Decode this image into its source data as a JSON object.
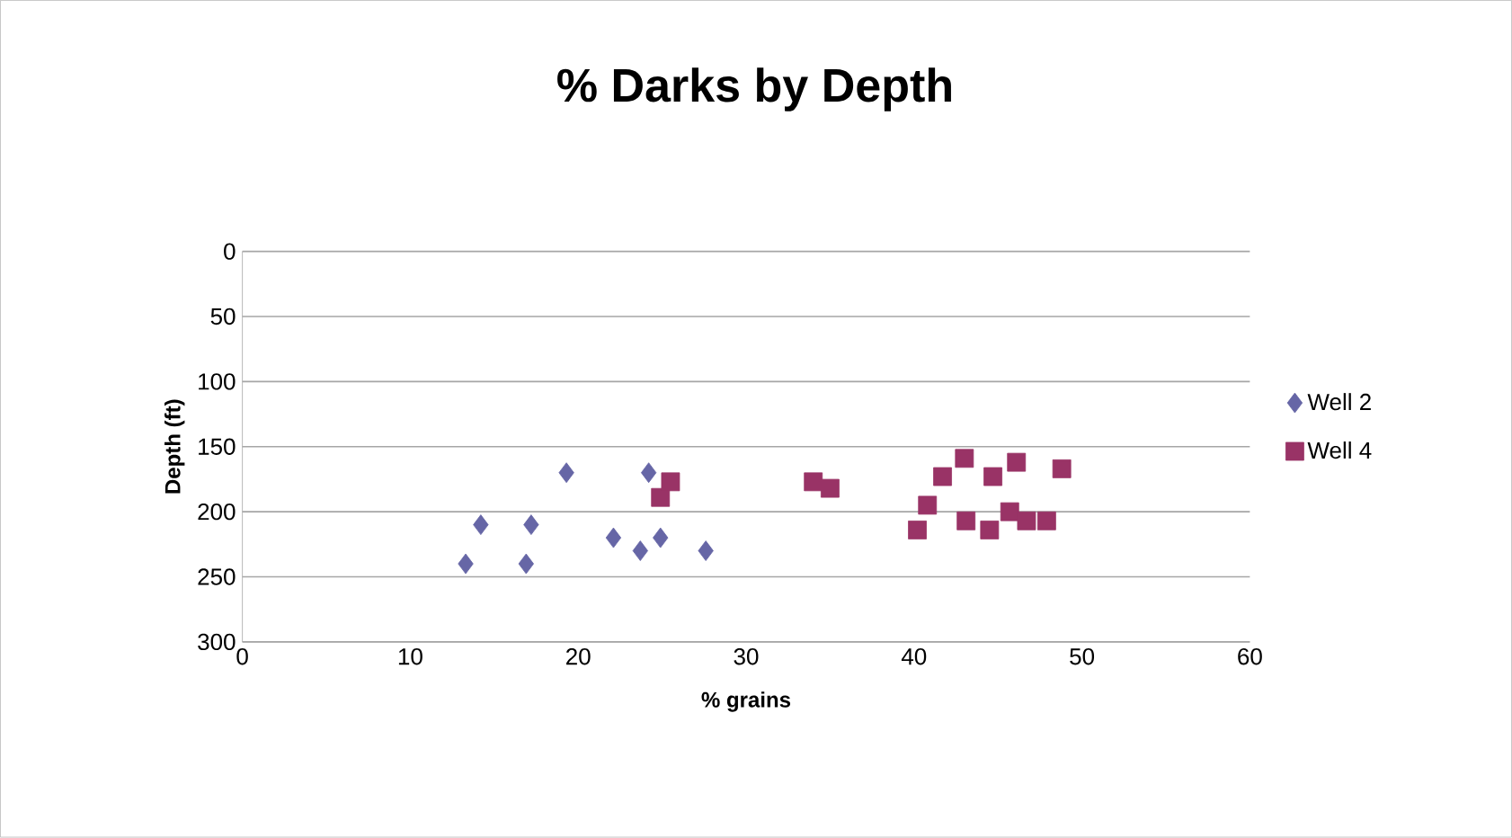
{
  "chart_data": {
    "type": "scatter",
    "title": "% Darks by Depth",
    "xlabel": "% grains",
    "ylabel": "Depth (ft)",
    "xlim": [
      0,
      60
    ],
    "xticks": [
      0,
      10,
      20,
      30,
      40,
      50,
      60
    ],
    "ylim": [
      300,
      0
    ],
    "yticks": [
      0,
      50,
      100,
      150,
      200,
      250,
      300
    ],
    "grid": "y",
    "legend": "right",
    "series": [
      {
        "name": "Well 2",
        "color": "#6666a6",
        "marker": "diamond",
        "x": [
          13.3,
          14.2,
          17.2,
          16.9,
          19.3,
          22.1,
          24.2,
          23.7,
          24.9,
          27.6
        ],
        "values": [
          240,
          210,
          210,
          240,
          170,
          220,
          170,
          230,
          220,
          230
        ]
      },
      {
        "name": "Well 4",
        "color": "#993366",
        "marker": "square",
        "x": [
          24.9,
          25.5,
          34,
          35,
          40.2,
          40.8,
          41.7,
          43,
          43.1,
          44.5,
          44.7,
          45.7,
          46.1,
          46.7,
          47.9,
          48.8
        ],
        "values": [
          189,
          177,
          177,
          182,
          214,
          195,
          173,
          159,
          207,
          214,
          173,
          200,
          162,
          207,
          207,
          167
        ]
      }
    ]
  }
}
